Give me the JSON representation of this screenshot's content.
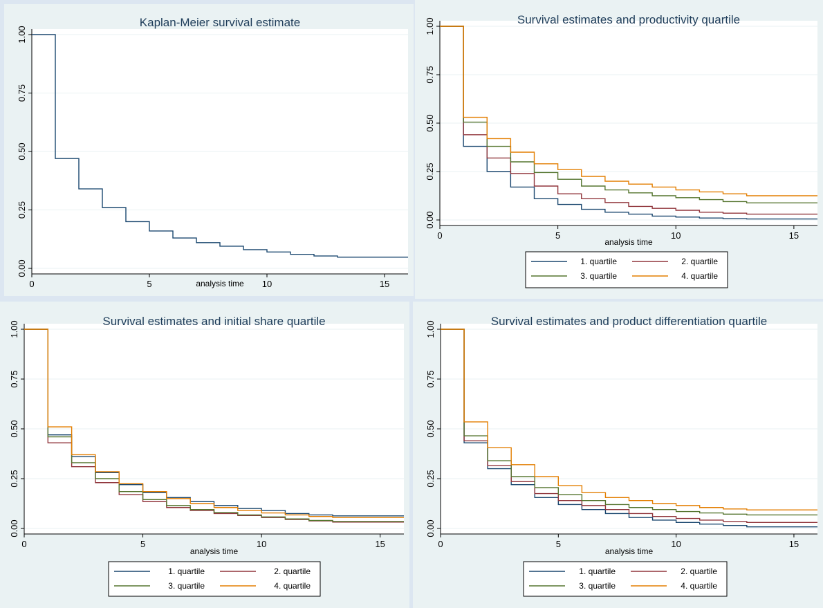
{
  "colors": {
    "q1": "#1a476f",
    "q2": "#90353b",
    "q3": "#55752f",
    "q4": "#e37e00"
  },
  "chart_data": [
    {
      "type": "line",
      "step": true,
      "title": "Kaplan-Meier survival estimate",
      "xlabel": "analysis time",
      "ylabel": "",
      "xlim": [
        0,
        16
      ],
      "ylim": [
        0,
        1
      ],
      "xticks": [
        "0",
        "5",
        "10",
        "15"
      ],
      "yticks": [
        "0.00",
        "0.25",
        "0.50",
        "0.75",
        "1.00"
      ],
      "x": [
        0,
        1,
        2,
        3,
        4,
        5,
        6,
        7,
        8,
        9,
        10,
        11,
        12,
        13,
        14,
        15,
        16
      ],
      "series": [
        {
          "color_key": "q1",
          "values": [
            1.0,
            0.47,
            0.34,
            0.26,
            0.2,
            0.16,
            0.13,
            0.11,
            0.095,
            0.08,
            0.07,
            0.06,
            0.053,
            0.048,
            0.048,
            0.048,
            0.048
          ]
        }
      ],
      "legend": []
    },
    {
      "type": "line",
      "step": true,
      "title": "Survival estimates and productivity quartile",
      "xlabel": "analysis time",
      "ylabel": "",
      "xlim": [
        0,
        16
      ],
      "ylim": [
        0,
        1
      ],
      "xticks": [
        "0",
        "5",
        "10",
        "15"
      ],
      "yticks": [
        "0.00",
        "0.25",
        "0.50",
        "0.75",
        "1.00"
      ],
      "x": [
        0,
        1,
        2,
        3,
        4,
        5,
        6,
        7,
        8,
        9,
        10,
        11,
        12,
        13,
        14,
        15,
        16
      ],
      "series": [
        {
          "name": "1. quartile",
          "color_key": "q1",
          "values": [
            1.0,
            0.38,
            0.25,
            0.17,
            0.11,
            0.08,
            0.055,
            0.04,
            0.03,
            0.02,
            0.015,
            0.01,
            0.007,
            0.005,
            0.005,
            0.005,
            0.005
          ]
        },
        {
          "name": "2. quartile",
          "color_key": "q2",
          "values": [
            1.0,
            0.44,
            0.32,
            0.24,
            0.175,
            0.135,
            0.11,
            0.09,
            0.07,
            0.06,
            0.05,
            0.04,
            0.035,
            0.03,
            0.03,
            0.03,
            0.03
          ]
        },
        {
          "name": "3. quartile",
          "color_key": "q3",
          "values": [
            1.0,
            0.505,
            0.38,
            0.3,
            0.245,
            0.21,
            0.175,
            0.155,
            0.14,
            0.125,
            0.115,
            0.105,
            0.095,
            0.088,
            0.088,
            0.088,
            0.088
          ]
        },
        {
          "name": "4. quartile",
          "color_key": "q4",
          "values": [
            1.0,
            0.53,
            0.42,
            0.35,
            0.29,
            0.26,
            0.225,
            0.2,
            0.185,
            0.17,
            0.155,
            0.145,
            0.135,
            0.125,
            0.125,
            0.125,
            0.125
          ]
        }
      ],
      "legend": [
        "1. quartile",
        "2. quartile",
        "3. quartile",
        "4. quartile"
      ]
    },
    {
      "type": "line",
      "step": true,
      "title": "Survival estimates and initial share quartile",
      "xlabel": "analysis time",
      "ylabel": "",
      "xlim": [
        0,
        16
      ],
      "ylim": [
        0,
        1
      ],
      "xticks": [
        "0",
        "5",
        "10",
        "15"
      ],
      "yticks": [
        "0.00",
        "0.25",
        "0.50",
        "0.75",
        "1.00"
      ],
      "x": [
        0,
        1,
        2,
        3,
        4,
        5,
        6,
        7,
        8,
        9,
        10,
        11,
        12,
        13,
        14,
        15,
        16
      ],
      "series": [
        {
          "name": "1. quartile",
          "color_key": "q1",
          "values": [
            1.0,
            0.47,
            0.36,
            0.28,
            0.22,
            0.18,
            0.155,
            0.135,
            0.115,
            0.1,
            0.09,
            0.075,
            0.068,
            0.063,
            0.063,
            0.063,
            0.063
          ]
        },
        {
          "name": "2. quartile",
          "color_key": "q2",
          "values": [
            1.0,
            0.43,
            0.31,
            0.23,
            0.17,
            0.135,
            0.105,
            0.09,
            0.075,
            0.065,
            0.055,
            0.045,
            0.038,
            0.032,
            0.032,
            0.032,
            0.032
          ]
        },
        {
          "name": "3. quartile",
          "color_key": "q3",
          "values": [
            1.0,
            0.46,
            0.33,
            0.25,
            0.185,
            0.145,
            0.115,
            0.095,
            0.08,
            0.068,
            0.058,
            0.048,
            0.04,
            0.035,
            0.035,
            0.035,
            0.035
          ]
        },
        {
          "name": "4. quartile",
          "color_key": "q4",
          "values": [
            1.0,
            0.51,
            0.37,
            0.285,
            0.225,
            0.185,
            0.15,
            0.125,
            0.105,
            0.09,
            0.078,
            0.068,
            0.06,
            0.055,
            0.055,
            0.055,
            0.055
          ]
        }
      ],
      "legend": [
        "1. quartile",
        "2. quartile",
        "3. quartile",
        "4. quartile"
      ]
    },
    {
      "type": "line",
      "step": true,
      "title": "Survival estimates and product differentiation quartile",
      "xlabel": "analysis time",
      "ylabel": "",
      "xlim": [
        0,
        16
      ],
      "ylim": [
        0,
        1
      ],
      "xticks": [
        "0",
        "5",
        "10",
        "15"
      ],
      "yticks": [
        "0.00",
        "0.25",
        "0.50",
        "0.75",
        "1.00"
      ],
      "x": [
        0,
        1,
        2,
        3,
        4,
        5,
        6,
        7,
        8,
        9,
        10,
        11,
        12,
        13,
        14,
        15,
        16
      ],
      "series": [
        {
          "name": "1. quartile",
          "color_key": "q1",
          "values": [
            1.0,
            0.43,
            0.3,
            0.22,
            0.155,
            0.12,
            0.095,
            0.075,
            0.055,
            0.042,
            0.03,
            0.022,
            0.015,
            0.008,
            0.008,
            0.008,
            0.008
          ]
        },
        {
          "name": "2. quartile",
          "color_key": "q2",
          "values": [
            1.0,
            0.44,
            0.315,
            0.235,
            0.175,
            0.14,
            0.115,
            0.095,
            0.075,
            0.06,
            0.05,
            0.042,
            0.035,
            0.03,
            0.03,
            0.03,
            0.03
          ]
        },
        {
          "name": "3. quartile",
          "color_key": "q3",
          "values": [
            1.0,
            0.465,
            0.34,
            0.26,
            0.205,
            0.17,
            0.14,
            0.12,
            0.105,
            0.095,
            0.085,
            0.078,
            0.072,
            0.068,
            0.068,
            0.068,
            0.068
          ]
        },
        {
          "name": "4. quartile",
          "color_key": "q4",
          "values": [
            1.0,
            0.535,
            0.405,
            0.32,
            0.26,
            0.215,
            0.18,
            0.155,
            0.14,
            0.125,
            0.115,
            0.105,
            0.098,
            0.093,
            0.093,
            0.093,
            0.093
          ]
        }
      ],
      "legend": [
        "1. quartile",
        "2. quartile",
        "3. quartile",
        "4. quartile"
      ]
    }
  ]
}
